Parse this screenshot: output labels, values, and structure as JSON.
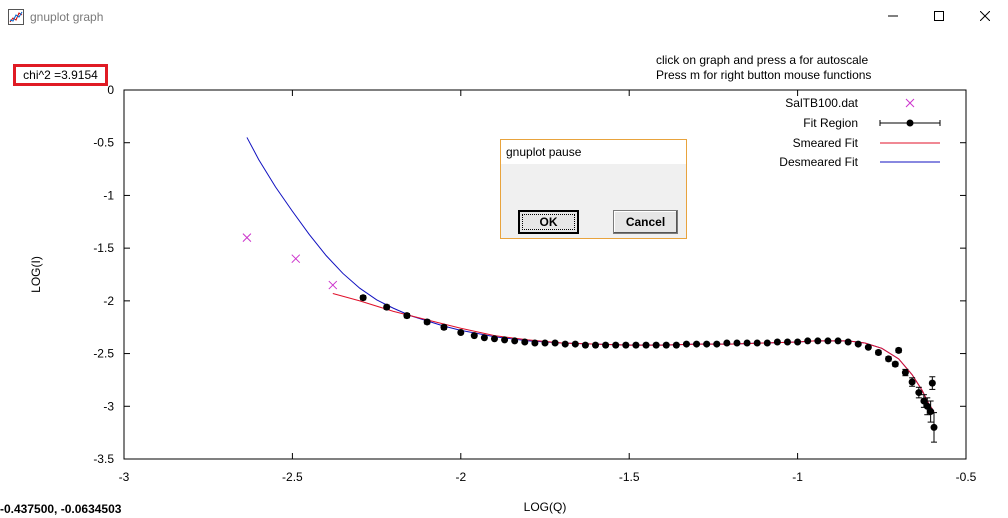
{
  "window": {
    "title": "gnuplot graph",
    "icon": "gnuplot-app-icon",
    "buttons": [
      "minimize-icon",
      "maximize-icon",
      "close-icon"
    ]
  },
  "chi_label": "chi^2 =3.9154",
  "hints": [
    "click on graph and press a for autoscale",
    "Press m for right button mouse functions"
  ],
  "status_coords": "-0.437500, -0.0634503",
  "dialog": {
    "title": "gnuplot pause",
    "ok": "OK",
    "cancel": "Cancel"
  },
  "colors": {
    "data_marker": "#cc33cc",
    "fit_region": "#000000",
    "smeared": "#e0102a",
    "desmeared": "#1010c0",
    "highlight": "#e01b24"
  },
  "chart_data": {
    "type": "scatter",
    "xlabel": "LOG(Q)",
    "ylabel": "LOG(I)",
    "xlim": [
      -3,
      -0.5
    ],
    "ylim": [
      -3.5,
      0
    ],
    "xticks": [
      -3,
      -2.5,
      -2,
      -1.5,
      -1,
      -0.5
    ],
    "yticks": [
      0,
      -0.5,
      -1,
      -1.5,
      -2,
      -2.5,
      -3,
      -3.5
    ],
    "legend_position": "top-right",
    "series": [
      {
        "name": "SalTB100.dat",
        "marker": "x",
        "x": [
          -2.635,
          -2.49,
          -2.38
        ],
        "y": [
          -1.4,
          -1.6,
          -1.85
        ]
      },
      {
        "name": "Fit Region",
        "marker": "filled-circle-errorbar",
        "x": [
          -2.29,
          -2.22,
          -2.16,
          -2.1,
          -2.05,
          -2.0,
          -1.96,
          -1.93,
          -1.9,
          -1.87,
          -1.84,
          -1.81,
          -1.78,
          -1.75,
          -1.72,
          -1.69,
          -1.66,
          -1.63,
          -1.6,
          -1.57,
          -1.54,
          -1.51,
          -1.48,
          -1.45,
          -1.42,
          -1.39,
          -1.36,
          -1.33,
          -1.3,
          -1.27,
          -1.24,
          -1.21,
          -1.18,
          -1.15,
          -1.12,
          -1.09,
          -1.06,
          -1.03,
          -1.0,
          -0.97,
          -0.94,
          -0.91,
          -0.88,
          -0.85,
          -0.82,
          -0.79,
          -0.76,
          -0.73,
          -0.71,
          -0.7,
          -0.68,
          -0.66,
          -0.64,
          -0.625,
          -0.615,
          -0.605,
          -0.6,
          -0.595
        ],
        "y": [
          -1.97,
          -2.06,
          -2.14,
          -2.2,
          -2.25,
          -2.3,
          -2.33,
          -2.35,
          -2.36,
          -2.37,
          -2.38,
          -2.39,
          -2.4,
          -2.4,
          -2.4,
          -2.41,
          -2.41,
          -2.42,
          -2.42,
          -2.42,
          -2.42,
          -2.42,
          -2.42,
          -2.42,
          -2.42,
          -2.42,
          -2.42,
          -2.41,
          -2.41,
          -2.41,
          -2.41,
          -2.4,
          -2.4,
          -2.4,
          -2.4,
          -2.4,
          -2.39,
          -2.39,
          -2.39,
          -2.38,
          -2.38,
          -2.38,
          -2.38,
          -2.39,
          -2.41,
          -2.44,
          -2.49,
          -2.55,
          -2.6,
          -2.47,
          -2.68,
          -2.77,
          -2.87,
          -2.95,
          -3.0,
          -3.05,
          -2.78,
          -3.2
        ],
        "err": [
          0.02,
          0.02,
          0.02,
          0.02,
          0.02,
          0.01,
          0.01,
          0.01,
          0.01,
          0.01,
          0.01,
          0.01,
          0.01,
          0.01,
          0.01,
          0.01,
          0.01,
          0.01,
          0.01,
          0.01,
          0.01,
          0.01,
          0.01,
          0.01,
          0.01,
          0.01,
          0.01,
          0.01,
          0.01,
          0.01,
          0.01,
          0.01,
          0.01,
          0.01,
          0.01,
          0.01,
          0.01,
          0.01,
          0.01,
          0.01,
          0.01,
          0.01,
          0.01,
          0.01,
          0.01,
          0.01,
          0.02,
          0.02,
          0.02,
          0.02,
          0.03,
          0.04,
          0.05,
          0.06,
          0.08,
          0.1,
          0.06,
          0.14
        ]
      },
      {
        "name": "Smeared Fit",
        "marker": "line",
        "x": [
          -2.38,
          -2.3,
          -2.2,
          -2.1,
          -2.0,
          -1.9,
          -1.8,
          -1.7,
          -1.6,
          -1.5,
          -1.4,
          -1.3,
          -1.2,
          -1.1,
          -1.0,
          -0.95,
          -0.9,
          -0.85,
          -0.8,
          -0.75,
          -0.7,
          -0.66,
          -0.63,
          -0.61,
          -0.595
        ],
        "y": [
          -1.93,
          -2.0,
          -2.1,
          -2.18,
          -2.26,
          -2.33,
          -2.37,
          -2.4,
          -2.41,
          -2.42,
          -2.42,
          -2.41,
          -2.41,
          -2.4,
          -2.39,
          -2.38,
          -2.38,
          -2.38,
          -2.4,
          -2.45,
          -2.55,
          -2.7,
          -2.85,
          -2.98,
          -3.05
        ]
      },
      {
        "name": "Desmeared Fit",
        "marker": "line",
        "x": [
          -2.635,
          -2.6,
          -2.55,
          -2.5,
          -2.45,
          -2.4,
          -2.35,
          -2.3,
          -2.25,
          -2.2,
          -2.15,
          -2.1,
          -2.05,
          -2.0,
          -1.95,
          -1.9,
          -1.85,
          -1.8,
          -1.7,
          -1.6,
          -1.5,
          -1.4,
          -1.3,
          -1.2,
          -1.1,
          -1.0,
          -0.95,
          -0.9,
          -0.85,
          -0.8,
          -0.75,
          -0.7,
          -0.66,
          -0.63,
          -0.61,
          -0.595
        ],
        "y": [
          -0.45,
          -0.66,
          -0.92,
          -1.15,
          -1.37,
          -1.57,
          -1.74,
          -1.88,
          -1.99,
          -2.07,
          -2.14,
          -2.19,
          -2.24,
          -2.28,
          -2.31,
          -2.34,
          -2.36,
          -2.38,
          -2.4,
          -2.41,
          -2.42,
          -2.42,
          -2.41,
          -2.41,
          -2.4,
          -2.39,
          -2.38,
          -2.38,
          -2.38,
          -2.4,
          -2.45,
          -2.55,
          -2.7,
          -2.85,
          -2.98,
          -3.05
        ]
      }
    ]
  }
}
